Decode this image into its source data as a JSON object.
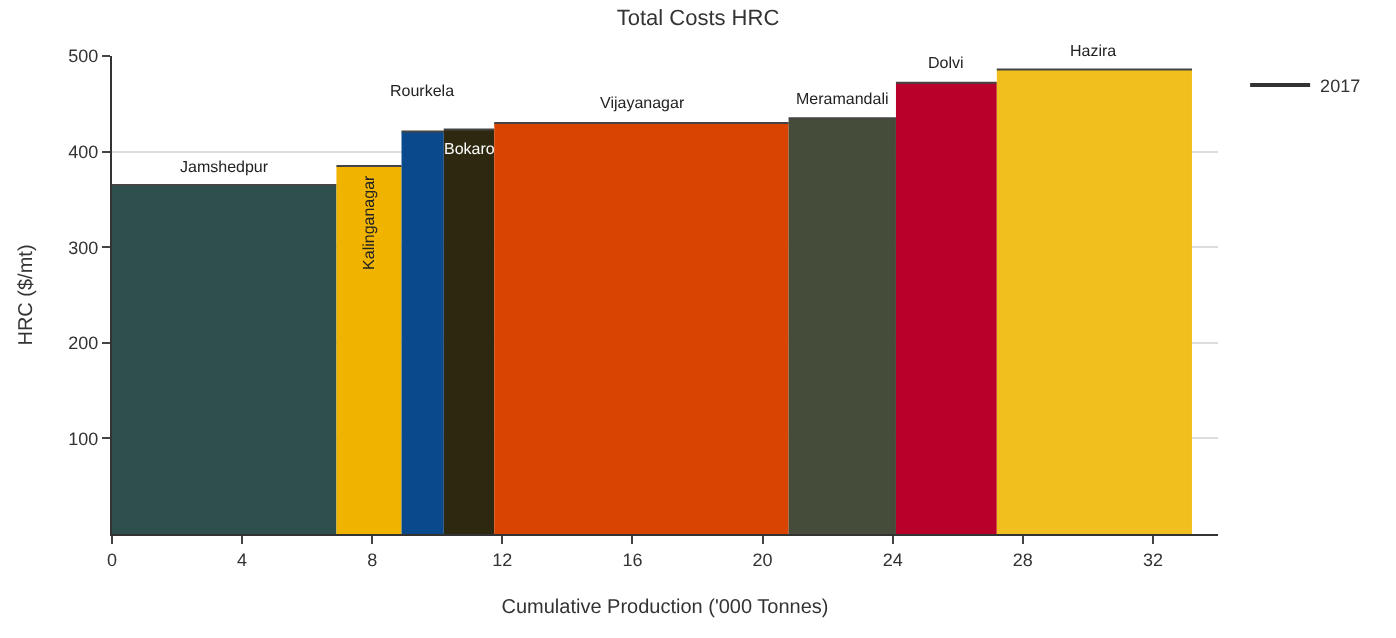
{
  "chart_data": {
    "type": "area",
    "title": "Total Costs HRC",
    "xlabel": "Cumulative Production ('000 Tonnes)",
    "ylabel": "HRC ($/mt)",
    "legend_title": "2017",
    "legend": "top right",
    "grid": "y",
    "xlim": [
      0,
      34
    ],
    "xticks": [
      0,
      4,
      8,
      12,
      16,
      20,
      24,
      28,
      32
    ],
    "ylim": [
      0,
      500
    ],
    "yticks": [
      100,
      200,
      300,
      400,
      500
    ],
    "series": [
      {
        "name": "Jamshedpur",
        "color": "#2f4f4f",
        "x": [
          0,
          6.9
        ],
        "values": [
          365,
          365
        ]
      },
      {
        "name": "Kalinganagar",
        "color": "#f0b400",
        "x": [
          6.9,
          8.9
        ],
        "values": [
          385,
          385
        ]
      },
      {
        "name": "Rourkela",
        "color": "#0a4a8c",
        "x": [
          8.9,
          10.2
        ],
        "values": [
          421,
          421
        ]
      },
      {
        "name": "Bokaro",
        "color": "#2e2810",
        "x": [
          10.2,
          11.75
        ],
        "values": [
          423,
          423
        ]
      },
      {
        "name": "Vijayanagar",
        "color": "#d94500",
        "x": [
          11.75,
          20.8
        ],
        "values": [
          430,
          430
        ]
      },
      {
        "name": "Meramandali",
        "color": "#454c3a",
        "x": [
          20.8,
          24.1
        ],
        "values": [
          435,
          435
        ]
      },
      {
        "name": "Dolvi",
        "color": "#b8002a",
        "x": [
          24.1,
          27.2
        ],
        "values": [
          472,
          472
        ]
      },
      {
        "name": "Hazira",
        "color": "#f2c01e",
        "x": [
          27.2,
          33.2
        ],
        "values": [
          486,
          486
        ]
      }
    ]
  }
}
